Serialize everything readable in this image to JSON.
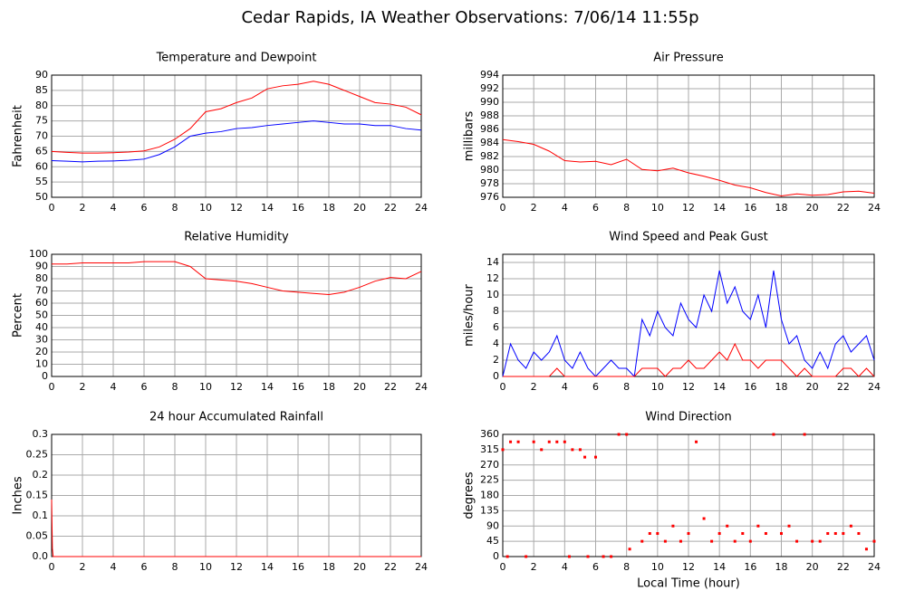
{
  "title": "Cedar Rapids, IA Weather Observations: 7/06/14 11:55p",
  "chart_data": [
    {
      "type": "line",
      "title": "Temperature and Dewpoint",
      "y_label": "Fahrenheit",
      "grid": true,
      "xlim": [
        0,
        24
      ],
      "xticks": [
        0,
        2,
        4,
        6,
        8,
        10,
        12,
        14,
        16,
        18,
        20,
        22,
        24
      ],
      "ylim": [
        50,
        90
      ],
      "yticks": [
        50,
        55,
        60,
        65,
        70,
        75,
        80,
        85,
        90
      ],
      "x": [
        0,
        1,
        2,
        3,
        4,
        5,
        6,
        7,
        8,
        9,
        10,
        11,
        12,
        13,
        14,
        15,
        16,
        17,
        18,
        19,
        20,
        21,
        22,
        23,
        24
      ],
      "series": [
        {
          "color": "#ff0000",
          "values": [
            65,
            64.7,
            64.5,
            64.5,
            64.6,
            64.8,
            65.2,
            66.5,
            69,
            72.5,
            78,
            79,
            81,
            82.5,
            85.5,
            86.5,
            87,
            88,
            87,
            85,
            83,
            81,
            80.5,
            79.5,
            77
          ]
        },
        {
          "color": "#0000ff",
          "values": [
            62,
            61.8,
            61.6,
            61.8,
            61.9,
            62.1,
            62.5,
            64,
            66.5,
            70,
            71,
            71.5,
            72.5,
            72.8,
            73.5,
            74,
            74.5,
            75,
            74.5,
            74,
            74,
            73.5,
            73.5,
            72.5,
            72
          ]
        }
      ]
    },
    {
      "type": "line",
      "title": "Air Pressure",
      "y_label": "millibars",
      "grid": true,
      "xlim": [
        0,
        24
      ],
      "xticks": [
        0,
        2,
        4,
        6,
        8,
        10,
        12,
        14,
        16,
        18,
        20,
        22,
        24
      ],
      "ylim": [
        976,
        994
      ],
      "yticks": [
        976,
        978,
        980,
        982,
        984,
        986,
        988,
        990,
        992,
        994
      ],
      "x": [
        0,
        1,
        2,
        3,
        4,
        5,
        6,
        7,
        8,
        9,
        10,
        11,
        12,
        13,
        14,
        15,
        16,
        17,
        18,
        19,
        20,
        21,
        22,
        23,
        24
      ],
      "series": [
        {
          "color": "#ff0000",
          "values": [
            984.5,
            984.2,
            983.8,
            982.8,
            981.4,
            981.2,
            981.3,
            980.8,
            981.6,
            980.1,
            979.9,
            980.3,
            979.6,
            979.1,
            978.5,
            977.8,
            977.4,
            976.7,
            976.2,
            976.5,
            976.3,
            976.4,
            976.8,
            976.9,
            976.6
          ]
        }
      ]
    },
    {
      "type": "line",
      "title": "Relative Humidity",
      "y_label": "Percent",
      "grid": true,
      "xlim": [
        0,
        24
      ],
      "xticks": [
        0,
        2,
        4,
        6,
        8,
        10,
        12,
        14,
        16,
        18,
        20,
        22,
        24
      ],
      "ylim": [
        0,
        100
      ],
      "yticks": [
        0,
        10,
        20,
        30,
        40,
        50,
        60,
        70,
        80,
        90,
        100
      ],
      "x": [
        0,
        1,
        2,
        3,
        4,
        5,
        6,
        7,
        8,
        9,
        10,
        11,
        12,
        13,
        14,
        15,
        16,
        17,
        18,
        19,
        20,
        21,
        22,
        23,
        24
      ],
      "series": [
        {
          "color": "#ff0000",
          "values": [
            92,
            92,
            93,
            93,
            93,
            93,
            94,
            94,
            94,
            90,
            80,
            79,
            78,
            76,
            73,
            70,
            69,
            68,
            67,
            69,
            73,
            78,
            81,
            80,
            86
          ]
        }
      ]
    },
    {
      "type": "line",
      "title": "Wind Speed and Peak Gust",
      "y_label": "miles/hour",
      "grid": true,
      "xlim": [
        0,
        24
      ],
      "xticks": [
        0,
        2,
        4,
        6,
        8,
        10,
        12,
        14,
        16,
        18,
        20,
        22,
        24
      ],
      "ylim": [
        0,
        15
      ],
      "yticks": [
        0,
        2,
        4,
        6,
        8,
        10,
        12,
        14
      ],
      "x": [
        0,
        0.5,
        1,
        1.5,
        2,
        2.5,
        3,
        3.5,
        4,
        4.5,
        5,
        5.5,
        6,
        6.5,
        7,
        7.5,
        8,
        8.5,
        9,
        9.5,
        10,
        10.5,
        11,
        11.5,
        12,
        12.5,
        13,
        13.5,
        14,
        14.5,
        15,
        15.5,
        16,
        16.5,
        17,
        17.5,
        18,
        18.5,
        19,
        19.5,
        20,
        20.5,
        21,
        21.5,
        22,
        22.5,
        23,
        23.5,
        24
      ],
      "series": [
        {
          "color": "#0000ff",
          "values": [
            0,
            4,
            2,
            1,
            3,
            2,
            3,
            5,
            2,
            1,
            3,
            1,
            0,
            1,
            2,
            1,
            1,
            0,
            7,
            5,
            8,
            6,
            5,
            9,
            7,
            6,
            10,
            8,
            13,
            9,
            11,
            8,
            7,
            10,
            6,
            13,
            7,
            4,
            5,
            2,
            1,
            3,
            1,
            4,
            5,
            3,
            4,
            5,
            2
          ]
        },
        {
          "color": "#ff0000",
          "values": [
            0,
            0,
            0,
            0,
            0,
            0,
            0,
            1,
            0,
            0,
            0,
            0,
            0,
            0,
            0,
            0,
            0,
            0,
            1,
            1,
            1,
            0,
            1,
            1,
            2,
            1,
            1,
            2,
            3,
            2,
            4,
            2,
            2,
            1,
            2,
            2,
            2,
            1,
            0,
            1,
            0,
            0,
            0,
            0,
            1,
            1,
            0,
            1,
            0
          ]
        }
      ]
    },
    {
      "type": "line",
      "title": "24 hour Accumulated Rainfall",
      "y_label": "Inches",
      "grid": true,
      "xlim": [
        0,
        24
      ],
      "xticks": [
        0,
        2,
        4,
        6,
        8,
        10,
        12,
        14,
        16,
        18,
        20,
        22,
        24
      ],
      "ylim": [
        0,
        0.3
      ],
      "yticks": [
        {
          "value": 0,
          "label": "0.0"
        },
        0.05,
        0.1,
        0.15,
        0.2,
        0.25,
        0.3
      ],
      "x": [
        0,
        0.05,
        0.1,
        24
      ],
      "series": [
        {
          "color": "#ff0000",
          "values": [
            0.14,
            0.02,
            0,
            0
          ]
        }
      ]
    },
    {
      "type": "scatter",
      "title": "Wind Direction",
      "y_label": "degrees",
      "x_label": "Local Time (hour)",
      "grid": true,
      "xlim": [
        0,
        24
      ],
      "xticks": [
        0,
        2,
        4,
        6,
        8,
        10,
        12,
        14,
        16,
        18,
        20,
        22,
        24
      ],
      "ylim": [
        0,
        360
      ],
      "yticks": [
        0,
        45,
        90,
        135,
        180,
        225,
        270,
        315,
        360
      ],
      "x": [
        0,
        0.3,
        0.5,
        1,
        1.5,
        2,
        2.5,
        3,
        3.5,
        4,
        4.3,
        4.5,
        5,
        5.3,
        5.5,
        6,
        6.5,
        7,
        7.5,
        8,
        8.2,
        9,
        9.5,
        10,
        10.5,
        11,
        11.5,
        12,
        12.5,
        13,
        13.5,
        14,
        14.5,
        15,
        15.5,
        16,
        16.5,
        17,
        17.5,
        18,
        18.5,
        19,
        19.5,
        20,
        20.5,
        21,
        21.5,
        22,
        22.5,
        23,
        23.5,
        24
      ],
      "series": [
        {
          "color": "#ff0000",
          "values": [
            315,
            0,
            338,
            338,
            0,
            338,
            315,
            338,
            338,
            338,
            0,
            315,
            315,
            293,
            0,
            293,
            0,
            0,
            360,
            360,
            22,
            45,
            68,
            68,
            45,
            90,
            45,
            68,
            338,
            112,
            45,
            68,
            90,
            45,
            68,
            45,
            90,
            68,
            360,
            68,
            90,
            45,
            360,
            45,
            45,
            68,
            68,
            68,
            90,
            68,
            22,
            45
          ]
        }
      ]
    }
  ]
}
